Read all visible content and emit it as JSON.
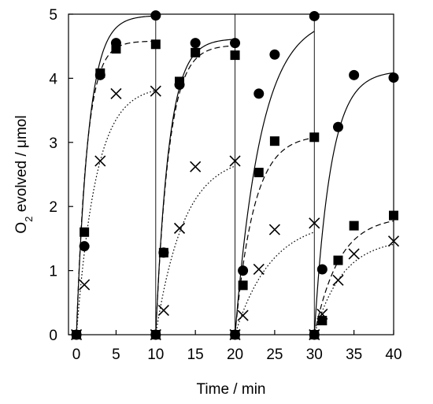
{
  "chart_data": {
    "type": "scatter",
    "xlabel": "Time / min",
    "ylabel": {
      "prefix": "O",
      "sub": "2",
      "rest": " evolved / μmol"
    },
    "xlim": [
      -1,
      40
    ],
    "ylim": [
      0,
      5
    ],
    "xticks": [
      0,
      5,
      10,
      15,
      20,
      25,
      30,
      35,
      40
    ],
    "yticks": [
      0,
      1,
      2,
      3,
      4,
      5
    ],
    "grid": false,
    "legend": "none",
    "cycle_boundaries": [
      10,
      20,
      30
    ],
    "series": [
      {
        "marker": "circle",
        "line_style": "solid",
        "points": [
          [
            0,
            0
          ],
          [
            1,
            1.38
          ],
          [
            3,
            4.05
          ],
          [
            5,
            4.55
          ],
          [
            10,
            4.98
          ],
          [
            10,
            0
          ],
          [
            11,
            1.28
          ],
          [
            13,
            3.9
          ],
          [
            15,
            4.55
          ],
          [
            20,
            4.55
          ],
          [
            20,
            0
          ],
          [
            21,
            1.0
          ],
          [
            23,
            3.76
          ],
          [
            25,
            4.37
          ],
          [
            30,
            4.97
          ],
          [
            30,
            0
          ],
          [
            31,
            1.02
          ],
          [
            33,
            3.24
          ],
          [
            35,
            4.05
          ],
          [
            40,
            4.01
          ]
        ],
        "fit_plateaus": [
          4.98,
          4.62,
          4.98,
          4.12
        ],
        "fit_rates": [
          0.65,
          0.6,
          0.3,
          0.48
        ]
      },
      {
        "marker": "square",
        "line_style": "dashed",
        "points": [
          [
            0,
            0
          ],
          [
            1,
            1.6
          ],
          [
            3,
            4.08
          ],
          [
            5,
            4.46
          ],
          [
            10,
            4.53
          ],
          [
            10,
            0
          ],
          [
            11,
            1.28
          ],
          [
            13,
            3.95
          ],
          [
            15,
            4.4
          ],
          [
            20,
            4.36
          ],
          [
            20,
            0
          ],
          [
            21,
            0.77
          ],
          [
            23,
            2.53
          ],
          [
            25,
            3.02
          ],
          [
            30,
            3.08
          ],
          [
            30,
            0
          ],
          [
            31,
            0.22
          ],
          [
            33,
            1.16
          ],
          [
            35,
            1.7
          ],
          [
            40,
            1.86
          ]
        ],
        "fit_plateaus": [
          4.58,
          4.52,
          3.12,
          1.85
        ],
        "fit_rates": [
          0.75,
          0.6,
          0.42,
          0.32
        ]
      },
      {
        "marker": "cross",
        "line_style": "dotted",
        "points": [
          [
            0,
            0
          ],
          [
            1,
            0.78
          ],
          [
            3,
            2.71
          ],
          [
            5,
            3.76
          ],
          [
            10,
            3.8
          ],
          [
            10,
            0
          ],
          [
            11,
            0.38
          ],
          [
            13,
            1.66
          ],
          [
            15,
            2.62
          ],
          [
            20,
            2.71
          ],
          [
            20,
            0
          ],
          [
            21,
            0.3
          ],
          [
            23,
            1.02
          ],
          [
            25,
            1.64
          ],
          [
            30,
            1.74
          ],
          [
            30,
            0
          ],
          [
            31,
            0.32
          ],
          [
            33,
            0.85
          ],
          [
            35,
            1.26
          ],
          [
            40,
            1.46
          ]
        ],
        "fit_plateaus": [
          3.88,
          2.8,
          1.8,
          1.5
        ],
        "fit_rates": [
          0.4,
          0.28,
          0.22,
          0.28
        ]
      }
    ]
  }
}
